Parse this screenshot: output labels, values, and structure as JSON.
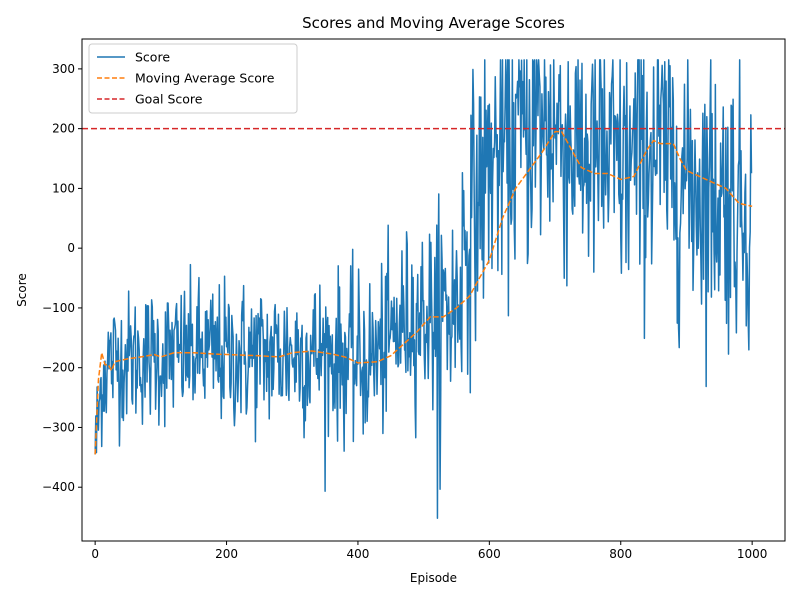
{
  "chart_data": {
    "type": "line",
    "title": "Scores and Moving Average Scores",
    "xlabel": "Episode",
    "ylabel": "Score",
    "xlim": [
      -20,
      1050
    ],
    "ylim": [
      -490,
      350
    ],
    "x_ticks": [
      0,
      200,
      400,
      600,
      800,
      1000
    ],
    "y_ticks": [
      -400,
      -300,
      -200,
      -100,
      0,
      100,
      200,
      300
    ],
    "legend_position": "top-left",
    "grid": false,
    "episodes": 1000,
    "series": [
      {
        "name": "Score",
        "style": "solid",
        "color": "#1f77b4",
        "anchors": [
          [
            0,
            -345
          ],
          [
            10,
            -220
          ],
          [
            20,
            -190
          ],
          [
            40,
            -185
          ],
          [
            60,
            -185
          ],
          [
            80,
            -180
          ],
          [
            100,
            -180
          ],
          [
            150,
            -175
          ],
          [
            200,
            -180
          ],
          [
            250,
            -180
          ],
          [
            300,
            -175
          ],
          [
            350,
            -175
          ],
          [
            400,
            -190
          ],
          [
            430,
            -180
          ],
          [
            450,
            -150
          ],
          [
            480,
            -110
          ],
          [
            520,
            -110
          ],
          [
            550,
            -100
          ],
          [
            560,
            0
          ],
          [
            580,
            80
          ],
          [
            600,
            140
          ],
          [
            650,
            200
          ],
          [
            700,
            210
          ],
          [
            720,
            180
          ],
          [
            750,
            160
          ],
          [
            800,
            130
          ],
          [
            850,
            170
          ],
          [
            880,
            140
          ],
          [
            900,
            120
          ],
          [
            950,
            90
          ],
          [
            1000,
            70
          ]
        ],
        "noise_amplitude": [
          [
            0,
            60
          ],
          [
            500,
            80
          ],
          [
            560,
            120
          ],
          [
            700,
            130
          ],
          [
            1000,
            130
          ]
        ],
        "min": -452,
        "max": 315
      },
      {
        "name": "Moving Average Score",
        "style": "dashed",
        "color": "#ff7f0e",
        "points": [
          [
            0,
            -345
          ],
          [
            5,
            -220
          ],
          [
            10,
            -175
          ],
          [
            15,
            -195
          ],
          [
            20,
            -195
          ],
          [
            25,
            -205
          ],
          [
            30,
            -190
          ],
          [
            50,
            -185
          ],
          [
            70,
            -182
          ],
          [
            90,
            -178
          ],
          [
            100,
            -182
          ],
          [
            120,
            -175
          ],
          [
            150,
            -175
          ],
          [
            180,
            -177
          ],
          [
            200,
            -178
          ],
          [
            250,
            -180
          ],
          [
            280,
            -182
          ],
          [
            300,
            -175
          ],
          [
            330,
            -172
          ],
          [
            360,
            -177
          ],
          [
            380,
            -182
          ],
          [
            400,
            -192
          ],
          [
            430,
            -190
          ],
          [
            450,
            -180
          ],
          [
            470,
            -160
          ],
          [
            490,
            -140
          ],
          [
            510,
            -115
          ],
          [
            530,
            -115
          ],
          [
            550,
            -100
          ],
          [
            570,
            -80
          ],
          [
            580,
            -60
          ],
          [
            600,
            -20
          ],
          [
            620,
            50
          ],
          [
            640,
            100
          ],
          [
            660,
            130
          ],
          [
            680,
            160
          ],
          [
            700,
            195
          ],
          [
            710,
            195
          ],
          [
            720,
            175
          ],
          [
            740,
            135
          ],
          [
            760,
            125
          ],
          [
            780,
            125
          ],
          [
            800,
            115
          ],
          [
            820,
            120
          ],
          [
            840,
            165
          ],
          [
            850,
            180
          ],
          [
            860,
            175
          ],
          [
            880,
            175
          ],
          [
            890,
            150
          ],
          [
            900,
            130
          ],
          [
            920,
            120
          ],
          [
            940,
            110
          ],
          [
            960,
            100
          ],
          [
            980,
            75
          ],
          [
            1000,
            70
          ]
        ]
      },
      {
        "name": "Goal Score",
        "style": "dashed",
        "color": "#d62728",
        "value": 200
      }
    ]
  }
}
